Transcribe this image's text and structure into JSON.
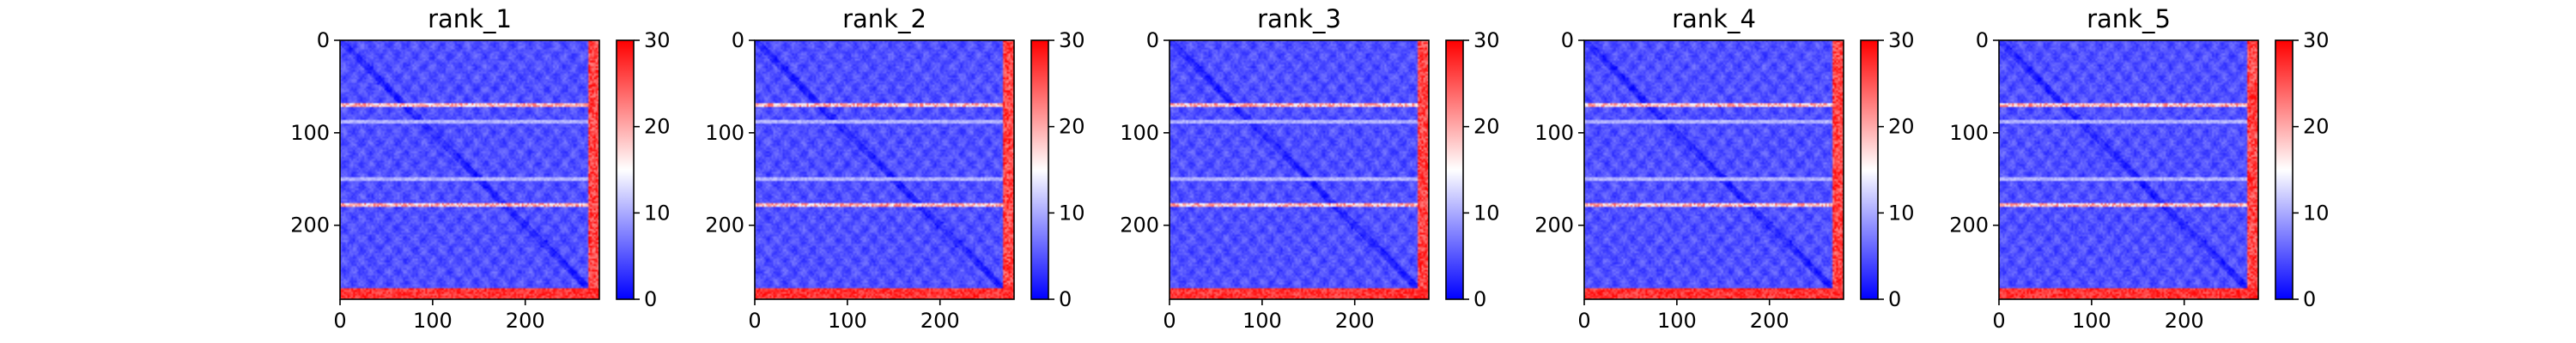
{
  "chart_data": [
    {
      "type": "heatmap",
      "title": "rank_1",
      "xlabel": "",
      "ylabel": "",
      "xlim": [
        0,
        280
      ],
      "ylim": [
        280,
        0
      ],
      "x_ticks": [
        "0",
        "100",
        "200"
      ],
      "y_ticks": [
        "0",
        "100",
        "200"
      ],
      "colorbar": {
        "range": [
          0,
          30
        ],
        "ticks": [
          "0",
          "10",
          "20",
          "30"
        ],
        "colormap": "bwr"
      },
      "highlights": {
        "high_rows": [
          70,
          178,
          272
        ],
        "high_cols": [
          272
        ],
        "medium_rows": [
          88,
          150
        ]
      }
    },
    {
      "type": "heatmap",
      "title": "rank_2",
      "xlabel": "",
      "ylabel": "",
      "xlim": [
        0,
        280
      ],
      "ylim": [
        280,
        0
      ],
      "x_ticks": [
        "0",
        "100",
        "200"
      ],
      "y_ticks": [
        "0",
        "100",
        "200"
      ],
      "colorbar": {
        "range": [
          0,
          30
        ],
        "ticks": [
          "0",
          "10",
          "20",
          "30"
        ],
        "colormap": "bwr"
      },
      "highlights": {
        "high_rows": [
          70,
          178,
          272
        ],
        "high_cols": [
          272
        ],
        "medium_rows": [
          88,
          150
        ]
      }
    },
    {
      "type": "heatmap",
      "title": "rank_3",
      "xlabel": "",
      "ylabel": "",
      "xlim": [
        0,
        280
      ],
      "ylim": [
        280,
        0
      ],
      "x_ticks": [
        "0",
        "100",
        "200"
      ],
      "y_ticks": [
        "0",
        "100",
        "200"
      ],
      "colorbar": {
        "range": [
          0,
          30
        ],
        "ticks": [
          "0",
          "10",
          "20",
          "30"
        ],
        "colormap": "bwr"
      },
      "highlights": {
        "high_rows": [
          70,
          178,
          272
        ],
        "high_cols": [
          272
        ],
        "medium_rows": [
          88,
          150
        ]
      }
    },
    {
      "type": "heatmap",
      "title": "rank_4",
      "xlabel": "",
      "ylabel": "",
      "xlim": [
        0,
        280
      ],
      "ylim": [
        280,
        0
      ],
      "x_ticks": [
        "0",
        "100",
        "200"
      ],
      "y_ticks": [
        "0",
        "100",
        "200"
      ],
      "colorbar": {
        "range": [
          0,
          30
        ],
        "ticks": [
          "0",
          "10",
          "20",
          "30"
        ],
        "colormap": "bwr"
      },
      "highlights": {
        "high_rows": [
          70,
          178,
          272
        ],
        "high_cols": [
          272
        ],
        "medium_rows": [
          88,
          150
        ]
      }
    },
    {
      "type": "heatmap",
      "title": "rank_5",
      "xlabel": "",
      "ylabel": "",
      "xlim": [
        0,
        280
      ],
      "ylim": [
        280,
        0
      ],
      "x_ticks": [
        "0",
        "100",
        "200"
      ],
      "y_ticks": [
        "0",
        "100",
        "200"
      ],
      "colorbar": {
        "range": [
          0,
          30
        ],
        "ticks": [
          "0",
          "10",
          "20",
          "30"
        ],
        "colormap": "bwr"
      },
      "highlights": {
        "high_rows": [
          70,
          178,
          272
        ],
        "high_cols": [
          272
        ],
        "medium_rows": [
          88,
          150
        ]
      }
    }
  ],
  "colors": {
    "low": "#0000ff",
    "mid": "#ffffff",
    "high": "#ff0000",
    "axis": "#000000"
  }
}
